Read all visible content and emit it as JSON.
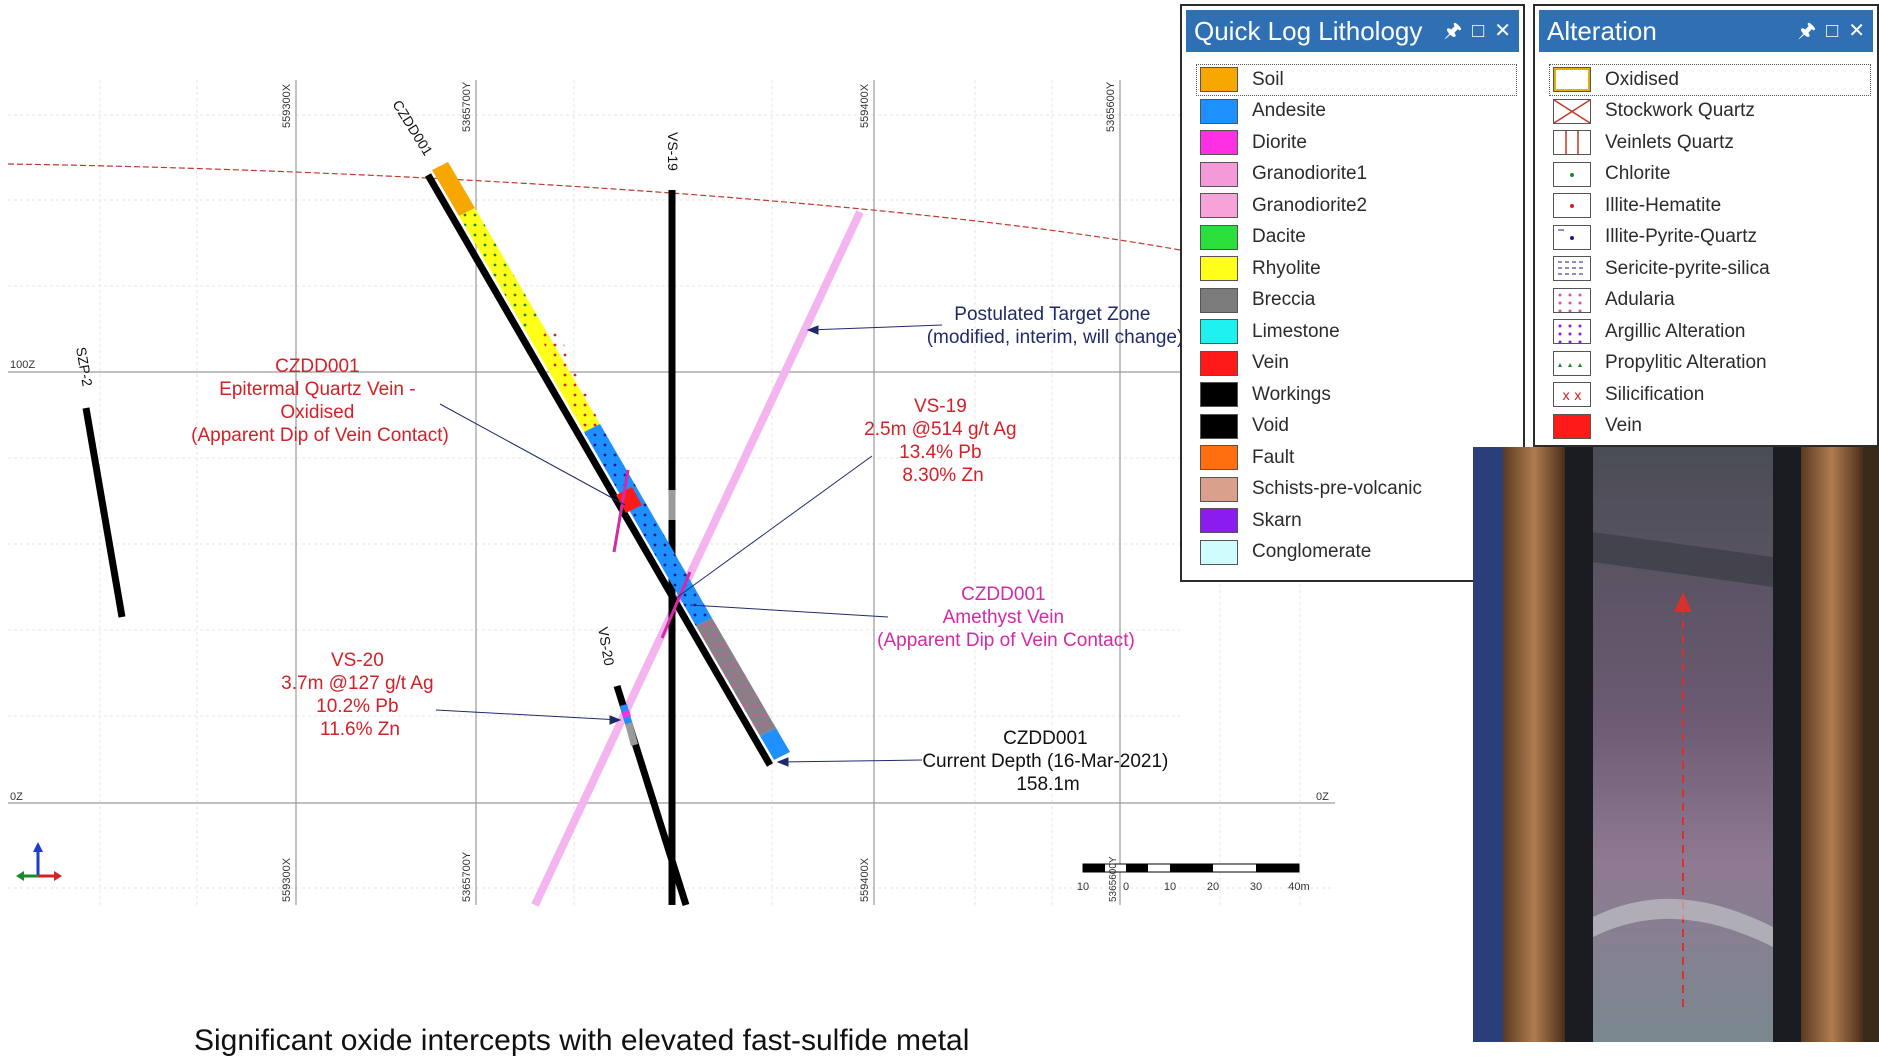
{
  "section": {
    "axis_labels": {
      "x1_top": "559300X",
      "y1_top": "5365700Y",
      "x2_top": "559400X",
      "y2_top": "5365600Y",
      "x1_bottom": "559300X",
      "y1_bottom": "5365700Y",
      "x2_bottom": "559400X",
      "level_100": "100Z",
      "level_0_left": "0Z",
      "level_0_right": "0Z"
    },
    "holes": {
      "czdd001": "CZDD001",
      "vs19": "VS-19",
      "vs20": "VS-20",
      "szp2": "SZP-2"
    },
    "annotations": {
      "target_zone": [
        "Postulated Target Zone",
        "(modified, interim, will change)"
      ],
      "epithermal": [
        "CZDD001",
        "Epitermal Quartz Vein -",
        "Oxidised",
        "(Apparent Dip of Vein Contact)"
      ],
      "vs19_intercept": [
        "VS-19",
        "2.5m @514 g/t Ag",
        "13.4% Pb",
        "8.30% Zn"
      ],
      "amethyst": [
        "CZDD001",
        "Amethyst Vein",
        "(Apparent Dip of Vein Contact)"
      ],
      "vs20_intercept": [
        "VS-20",
        "3.7m @127 g/t Ag",
        "10.2% Pb",
        "11.6% Zn"
      ],
      "current_depth": [
        "CZDD001",
        "Current Depth (16-Mar-2021)",
        "158.1m"
      ]
    },
    "scale_bar": {
      "ticks": [
        "10",
        "0",
        "10",
        "20",
        "30",
        "40m"
      ],
      "hidden_label": "5365600Y"
    },
    "colors": {
      "text_red": "#d42027",
      "text_navy": "#1f2a6b",
      "text_magenta": "#d42aa6",
      "pink_zone": "#f4b4f0"
    }
  },
  "lithology_panel": {
    "title": "Quick Log Lithology",
    "icons": [
      "pin-icon",
      "maximize-icon",
      "close-icon"
    ],
    "items": [
      {
        "label": "Soil",
        "color": "#f6a800"
      },
      {
        "label": "Andesite",
        "color": "#1e90ff"
      },
      {
        "label": "Diorite",
        "color": "#ff2fe3"
      },
      {
        "label": "Granodiorite1",
        "color": "#f49ad9"
      },
      {
        "label": "Granodiorite2",
        "color": "#f5a3d8"
      },
      {
        "label": "Dacite",
        "color": "#2bdf3a"
      },
      {
        "label": "Rhyolite",
        "color": "#ffff1a"
      },
      {
        "label": "Breccia",
        "color": "#7b7b7b"
      },
      {
        "label": "Limestone",
        "color": "#1ff0f0"
      },
      {
        "label": "Vein",
        "color": "#ff1a1a"
      },
      {
        "label": "Workings",
        "color": "#000000"
      },
      {
        "label": "Void",
        "color": "#000000"
      },
      {
        "label": "Fault",
        "color": "#ff6f0f"
      },
      {
        "label": "Schists-pre-volcanic",
        "color": "#d9a08b"
      },
      {
        "label": "Skarn",
        "color": "#8a1cf0"
      },
      {
        "label": "Conglomerate",
        "color": "#cffcfc"
      }
    ]
  },
  "alteration_panel": {
    "title": "Alteration",
    "icons": [
      "pin-icon",
      "maximize-icon",
      "close-icon"
    ],
    "items": [
      {
        "label": "Oxidised",
        "pattern": "oxidised"
      },
      {
        "label": "Stockwork Quartz",
        "pattern": "cross"
      },
      {
        "label": "Veinlets Quartz",
        "pattern": "vlines"
      },
      {
        "label": "Chlorite",
        "pattern": "green-dots"
      },
      {
        "label": "Illite-Hematite",
        "pattern": "red-dots"
      },
      {
        "label": "Illite-Pyrite-Quartz",
        "pattern": "blue-dots"
      },
      {
        "label": "Sericite-pyrite-silica",
        "pattern": "dashes"
      },
      {
        "label": "Adularia",
        "pattern": "pink-dots"
      },
      {
        "label": "Argillic Alteration",
        "pattern": "purple-dots"
      },
      {
        "label": "Propylitic Alteration",
        "pattern": "green-triangles"
      },
      {
        "label": "Silicification",
        "pattern": "red-x"
      },
      {
        "label": "Vein",
        "pattern": "solid-red"
      }
    ]
  },
  "caption": "Significant oxide intercepts with elevated fast-sulfide metal"
}
